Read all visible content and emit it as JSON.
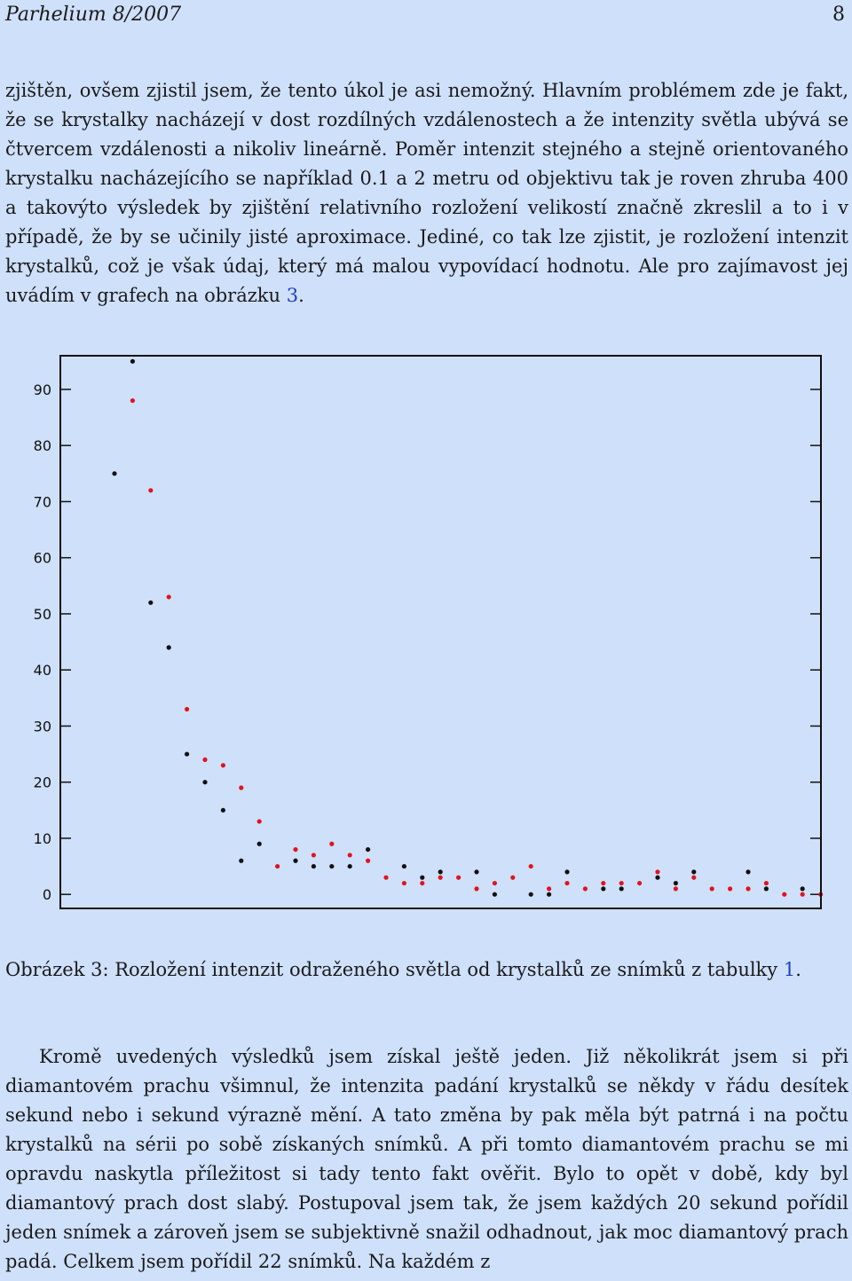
{
  "header": {
    "title": "Parhelium 8/2007",
    "page_number": "8"
  },
  "paragraph1": {
    "text_before": "zjištěn, ovšem zjistil jsem, že tento úkol je asi nemožný. Hlavním problémem zde je fakt, že se krystalky nacházejí v dost rozdílných vzdálenostech a že intenzity světla ubývá se čtvercem vzdálenosti a nikoliv lineárně. Poměr intenzit stejného a stejně orientovaného krystalku nacházejícího se například 0.1 a 2 metru od objektivu tak je roven zhruba 400 a takovýto výsledek by zjištění relativního rozložení velikostí značně zkreslil a to i v případě, že by se učinily jisté aproximace. Jediné, co tak lze zjistit, je rozložení intenzit krystalků, což je však údaj, který má malou vypovídací hodnotu. Ale pro zajímavost jej uvádím v grafech na obrázku ",
    "ref": "3",
    "text_after": "."
  },
  "figure": {
    "caption_before": "Obrázek 3: Rozložení intenzit odraženého světla od krystalků ze snímků z tabulky ",
    "caption_ref": "1",
    "caption_after": "."
  },
  "chart_data": {
    "type": "scatter",
    "title": "",
    "xlabel": "",
    "ylabel": "",
    "ylim": [
      -2.5,
      96
    ],
    "y_ticks": [
      0,
      10,
      20,
      30,
      40,
      50,
      60,
      70,
      80,
      90
    ],
    "grid": false,
    "series": [
      {
        "color": "#111111",
        "points": [
          [
            1,
            75
          ],
          [
            2,
            95
          ],
          [
            3,
            52
          ],
          [
            4,
            44
          ],
          [
            5,
            25
          ],
          [
            6,
            20
          ],
          [
            7,
            15
          ],
          [
            8,
            6
          ],
          [
            9,
            9
          ],
          [
            11,
            6
          ],
          [
            12,
            5
          ],
          [
            13,
            5
          ],
          [
            14,
            5
          ],
          [
            15,
            8
          ],
          [
            17,
            5
          ],
          [
            18,
            3
          ],
          [
            19,
            4
          ],
          [
            21,
            4
          ],
          [
            22,
            0
          ],
          [
            24,
            0
          ],
          [
            25,
            0
          ],
          [
            26,
            4
          ],
          [
            28,
            1
          ],
          [
            29,
            1
          ],
          [
            31,
            3
          ],
          [
            32,
            2
          ],
          [
            33,
            4
          ],
          [
            36,
            4
          ],
          [
            37,
            1
          ],
          [
            39,
            1
          ]
        ]
      },
      {
        "color": "#e0141e",
        "points": [
          [
            2,
            88
          ],
          [
            3,
            72
          ],
          [
            4,
            53
          ],
          [
            5,
            33
          ],
          [
            6,
            24
          ],
          [
            7,
            23
          ],
          [
            8,
            19
          ],
          [
            9,
            13
          ],
          [
            10,
            5
          ],
          [
            11,
            8
          ],
          [
            12,
            7
          ],
          [
            13,
            9
          ],
          [
            14,
            7
          ],
          [
            15,
            6
          ],
          [
            16,
            3
          ],
          [
            17,
            2
          ],
          [
            18,
            2
          ],
          [
            19,
            3
          ],
          [
            20,
            3
          ],
          [
            21,
            1
          ],
          [
            22,
            2
          ],
          [
            23,
            3
          ],
          [
            24,
            5
          ],
          [
            25,
            1
          ],
          [
            26,
            2
          ],
          [
            27,
            1
          ],
          [
            28,
            2
          ],
          [
            29,
            2
          ],
          [
            30,
            2
          ],
          [
            31,
            4
          ],
          [
            32,
            1
          ],
          [
            33,
            3
          ],
          [
            34,
            1
          ],
          [
            35,
            1
          ],
          [
            36,
            1
          ],
          [
            37,
            2
          ],
          [
            38,
            0
          ],
          [
            39,
            0
          ],
          [
            40,
            0
          ]
        ]
      }
    ]
  },
  "paragraph2": {
    "text": "Kromě uvedených výsledků jsem získal ještě jeden. Již několikrát jsem si při diamantovém prachu všimnul, že intenzita padání krystalků se někdy v řádu desítek sekund nebo i sekund výrazně mění. A tato změna by pak měla být patrná i na počtu krystalků na sérii po sobě získaných snímků. A při tomto diamantovém prachu se mi opravdu naskytla příležitost si tady tento fakt ověřit. Bylo to opět v době, kdy byl diamantový prach dost slabý. Postupoval jsem tak, že jsem každých 20 sekund pořídil jeden snímek a zároveň jsem se subjektivně snažil odhadnout, jak moc diamantový prach padá. Celkem jsem pořídil 22 snímků. Na každém z"
  }
}
